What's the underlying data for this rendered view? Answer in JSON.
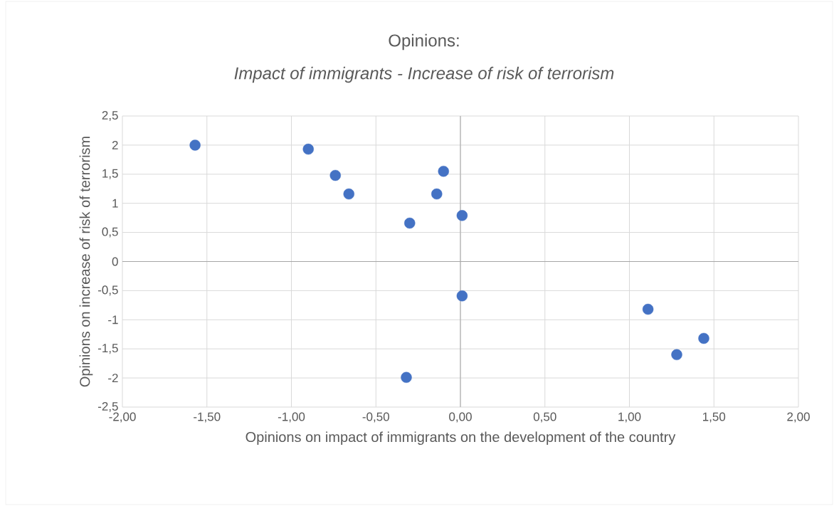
{
  "chart_data": {
    "type": "scatter",
    "title": "Opinions:",
    "subtitle": "Impact of immigrants - Increase of risk of terrorism",
    "xlabel": "Opinions on impact of immigrants on the development of the country",
    "ylabel": "Opinions on increase of risk of terrorism",
    "x": [
      -1.57,
      -0.9,
      -0.74,
      -0.66,
      -0.1,
      -0.14,
      -0.3,
      0.01,
      0.01,
      1.11,
      1.44,
      1.28,
      -0.32
    ],
    "values": [
      2.0,
      1.93,
      1.48,
      1.16,
      1.55,
      1.16,
      0.66,
      0.79,
      -0.59,
      -0.82,
      -1.32,
      -1.6,
      -1.99
    ],
    "color": "#4472c4",
    "marker": "circle",
    "grid": true,
    "xlim": [
      -2,
      2
    ],
    "xticks": [
      {
        "value": -2,
        "label": "-2,00"
      },
      {
        "value": -1.5,
        "label": "-1,50"
      },
      {
        "value": -1,
        "label": "-1,00"
      },
      {
        "value": -0.5,
        "label": "-0,50"
      },
      {
        "value": 0,
        "label": "0,00"
      },
      {
        "value": 0.5,
        "label": "0,50"
      },
      {
        "value": 1,
        "label": "1,00"
      },
      {
        "value": 1.5,
        "label": "1,50"
      },
      {
        "value": 2,
        "label": "2,00"
      }
    ],
    "ylim": [
      -2.5,
      2.5
    ],
    "yticks": [
      {
        "value": -2.5,
        "label": "-2,5"
      },
      -2,
      {
        "value": -1.5,
        "label": "-1,5"
      },
      -1,
      {
        "value": -0.5,
        "label": "-0,5"
      },
      0,
      {
        "value": 0.5,
        "label": "0,5"
      },
      1,
      {
        "value": 1.5,
        "label": "1,5"
      },
      2,
      {
        "value": 2.5,
        "label": "2,5"
      }
    ]
  }
}
